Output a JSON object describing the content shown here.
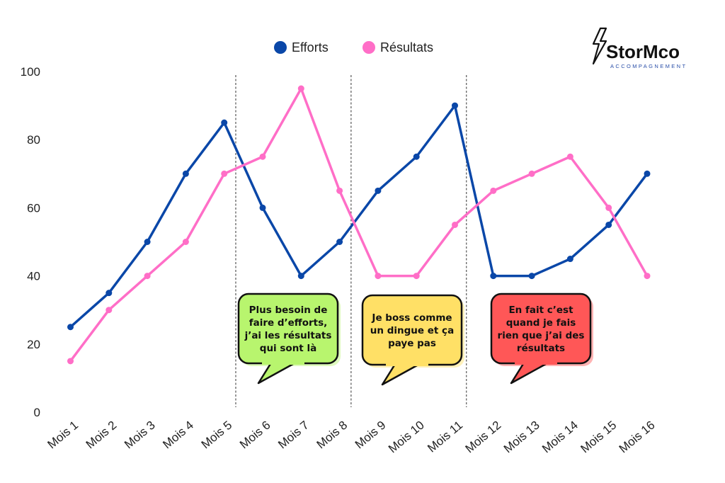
{
  "logo": {
    "text": "StorMco",
    "subtitle": "ACCOMPAGNEMENT"
  },
  "chart_data": {
    "type": "line",
    "categories": [
      "Mois 1",
      "Mois 2",
      "Mois 3",
      "Mois 4",
      "Mois 5",
      "Mois 6",
      "Mois 7",
      "Mois 8",
      "Mois 9",
      "Mois 10",
      "Mois 11",
      "Mois 12",
      "Mois 13",
      "Mois 14",
      "Mois 15",
      "Mois 16"
    ],
    "series": [
      {
        "name": "Efforts",
        "color": "#0a47a8",
        "values": [
          25,
          35,
          50,
          70,
          85,
          60,
          40,
          50,
          65,
          75,
          90,
          40,
          40,
          45,
          55,
          70
        ]
      },
      {
        "name": "Résultats",
        "color": "#ff6ec7",
        "values": [
          15,
          30,
          40,
          50,
          70,
          75,
          95,
          65,
          40,
          40,
          55,
          65,
          70,
          75,
          60,
          40
        ]
      }
    ],
    "ylim": [
      0,
      100
    ],
    "yticks": [
      0,
      20,
      40,
      60,
      80,
      100
    ],
    "grid": false,
    "legend_position": "top",
    "dividers_after": [
      "Mois 5",
      "Mois 8",
      "Mois 11"
    ],
    "annotations": [
      {
        "lines": [
          "Plus besoin de",
          "faire d’efforts,",
          "j’ai les résultats",
          "qui sont là"
        ],
        "color": "#b8f56e"
      },
      {
        "lines": [
          "Je boss comme",
          "un dingue et ça",
          "paye pas"
        ],
        "color": "#ffe066"
      },
      {
        "lines": [
          "En fait c’est",
          "quand je fais",
          "rien que j’ai des",
          "résultats"
        ],
        "color": "#ff5757"
      }
    ]
  }
}
